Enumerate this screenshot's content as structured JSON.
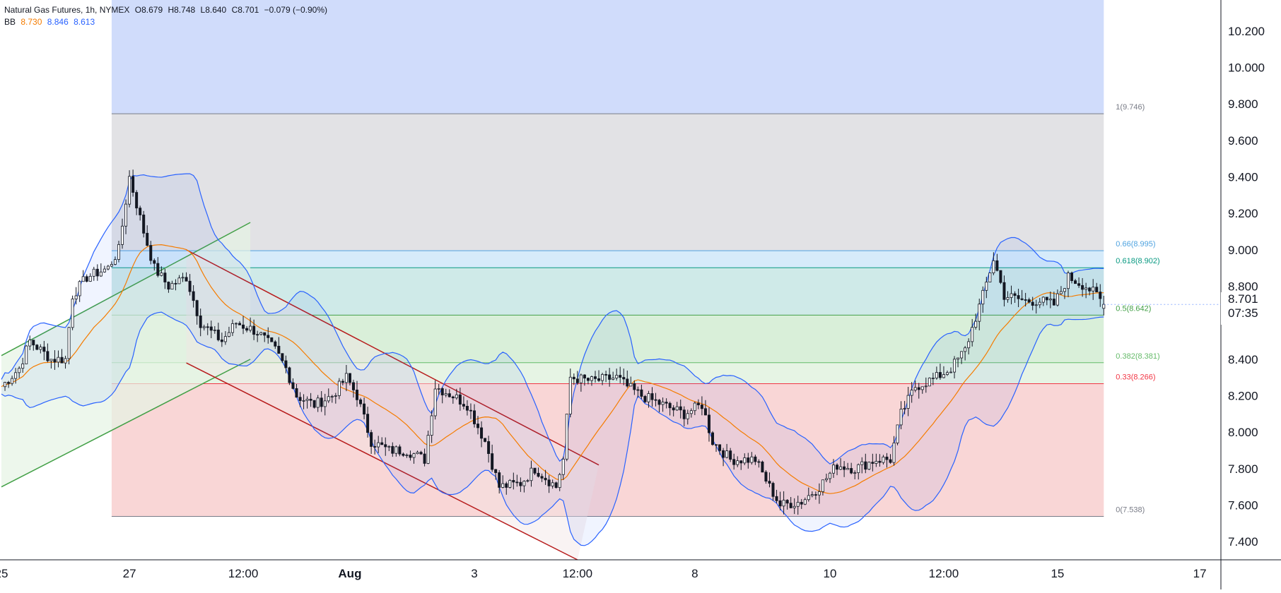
{
  "header": {
    "symbol": "Natural Gas Futures, 1h, NYMEX",
    "o": "O8.679",
    "h": "H8.748",
    "l": "L8.640",
    "c": "C8.701",
    "change": "−0.079 (−0.90%)",
    "bb_label": "BB",
    "bb_mid": "8.730",
    "bb_up": "8.846",
    "bb_lo": "8.613"
  },
  "price_tag": {
    "price": "8.701",
    "countdown": "07:35"
  },
  "colors": {
    "up_candle": "#ffffff",
    "down_candle": "#131722",
    "wick": "#131722",
    "bb_band": "#2962ff",
    "bb_mid": "#f57c00",
    "bb_fill": "#e3e9f7",
    "zone_top": "#d0dcfb",
    "zone_grey": "#e2e2e5",
    "zone_lightblue": "#d6ebfa",
    "zone_teal": "#cfeae8",
    "zone_green": "#d9efd9",
    "zone_lightgreen": "#e6f4e4",
    "zone_red": "#f9d6d6",
    "channel_green": "#43a047",
    "channel_red": "#b71c1c"
  },
  "chart_data": {
    "type": "candlestick",
    "title": "",
    "ylim": [
      7.3,
      10.37
    ],
    "y_ticks": [
      7.4,
      7.6,
      7.8,
      8.0,
      8.2,
      8.4,
      8.6,
      8.8,
      9.0,
      9.2,
      9.4,
      9.6,
      9.8,
      10.0,
      10.2
    ],
    "y_tick_labels": [
      "7.400",
      "7.600",
      "7.800",
      "8.000",
      "8.200",
      "8.400",
      "",
      "8.800",
      "9.000",
      "9.200",
      "9.400",
      "9.600",
      "9.800",
      "10.000",
      "10.200"
    ],
    "x_ticks": [
      "25",
      "27",
      "12:00",
      "Aug",
      "3",
      "12:00",
      "8",
      "10",
      "12:00",
      "15",
      "17"
    ],
    "x_tick_bars": [
      0,
      36,
      68,
      98,
      133,
      162,
      195,
      233,
      265,
      297,
      337
    ],
    "bar_count": 310,
    "fib_levels": [
      {
        "ratio": "1",
        "value": 9.746,
        "label": "1(9.746)",
        "color": "#787b86"
      },
      {
        "ratio": "0.66",
        "value": 8.995,
        "label": "0.66(8.995)",
        "color": "#4fa3e0"
      },
      {
        "ratio": "0.618",
        "value": 8.902,
        "label": "0.618(8.902)",
        "color": "#089981"
      },
      {
        "ratio": "0.5",
        "value": 8.642,
        "label": "0.5(8.642)",
        "color": "#43a047"
      },
      {
        "ratio": "0.382",
        "value": 8.381,
        "label": "0.382(8.381)",
        "color": "#66bb6a"
      },
      {
        "ratio": "0.33",
        "value": 8.266,
        "label": "0.33(8.266)",
        "color": "#f23645"
      },
      {
        "ratio": "0",
        "value": 7.538,
        "label": "0(7.538)",
        "color": "#787b86"
      }
    ],
    "fib_start_bar": 31,
    "fib_end_bar": 310,
    "price_anchors": [
      [
        0,
        8.25
      ],
      [
        5,
        8.35
      ],
      [
        8,
        8.5
      ],
      [
        14,
        8.4
      ],
      [
        18,
        8.4
      ],
      [
        20,
        8.75
      ],
      [
        24,
        8.85
      ],
      [
        30,
        8.9
      ],
      [
        33,
        9.0
      ],
      [
        36,
        9.4
      ],
      [
        40,
        9.1
      ],
      [
        43,
        8.9
      ],
      [
        47,
        8.8
      ],
      [
        52,
        8.85
      ],
      [
        56,
        8.6
      ],
      [
        62,
        8.5
      ],
      [
        66,
        8.6
      ],
      [
        72,
        8.55
      ],
      [
        77,
        8.45
      ],
      [
        80,
        8.35
      ],
      [
        83,
        8.2
      ],
      [
        88,
        8.15
      ],
      [
        93,
        8.2
      ],
      [
        97,
        8.3
      ],
      [
        100,
        8.2
      ],
      [
        104,
        7.95
      ],
      [
        109,
        7.9
      ],
      [
        114,
        7.9
      ],
      [
        119,
        7.85
      ],
      [
        122,
        8.25
      ],
      [
        127,
        8.2
      ],
      [
        131,
        8.15
      ],
      [
        136,
        7.95
      ],
      [
        140,
        7.7
      ],
      [
        146,
        7.72
      ],
      [
        150,
        7.8
      ],
      [
        156,
        7.7
      ],
      [
        158,
        7.85
      ],
      [
        160,
        8.3
      ],
      [
        166,
        8.28
      ],
      [
        173,
        8.3
      ],
      [
        176,
        8.25
      ],
      [
        180,
        8.2
      ],
      [
        186,
        8.15
      ],
      [
        192,
        8.1
      ],
      [
        197,
        8.15
      ],
      [
        200,
        7.95
      ],
      [
        205,
        7.85
      ],
      [
        212,
        7.85
      ],
      [
        216,
        7.7
      ],
      [
        219,
        7.6
      ],
      [
        225,
        7.62
      ],
      [
        230,
        7.7
      ],
      [
        235,
        7.82
      ],
      [
        240,
        7.8
      ],
      [
        246,
        7.85
      ],
      [
        250,
        7.85
      ],
      [
        253,
        8.1
      ],
      [
        257,
        8.25
      ],
      [
        263,
        8.3
      ],
      [
        267,
        8.35
      ],
      [
        271,
        8.45
      ],
      [
        276,
        8.75
      ],
      [
        279,
        8.95
      ],
      [
        282,
        8.75
      ],
      [
        288,
        8.72
      ],
      [
        292,
        8.72
      ],
      [
        296,
        8.7
      ],
      [
        300,
        8.85
      ],
      [
        305,
        8.8
      ],
      [
        308,
        8.75
      ],
      [
        310,
        8.701
      ]
    ],
    "ohlc_last": {
      "open": 8.679,
      "high": 8.748,
      "low": 8.64,
      "close": 8.701
    },
    "drawings": {
      "green_channel_upper": [
        [
          0,
          8.42
        ],
        [
          70,
          9.15
        ]
      ],
      "green_channel_lower": [
        [
          0,
          7.7
        ],
        [
          70,
          8.4
        ]
      ],
      "red_channel_upper": [
        [
          52,
          9.0
        ],
        [
          168,
          7.82
        ]
      ],
      "red_channel_lower": [
        [
          52,
          8.38
        ],
        [
          162,
          7.3
        ]
      ]
    }
  }
}
